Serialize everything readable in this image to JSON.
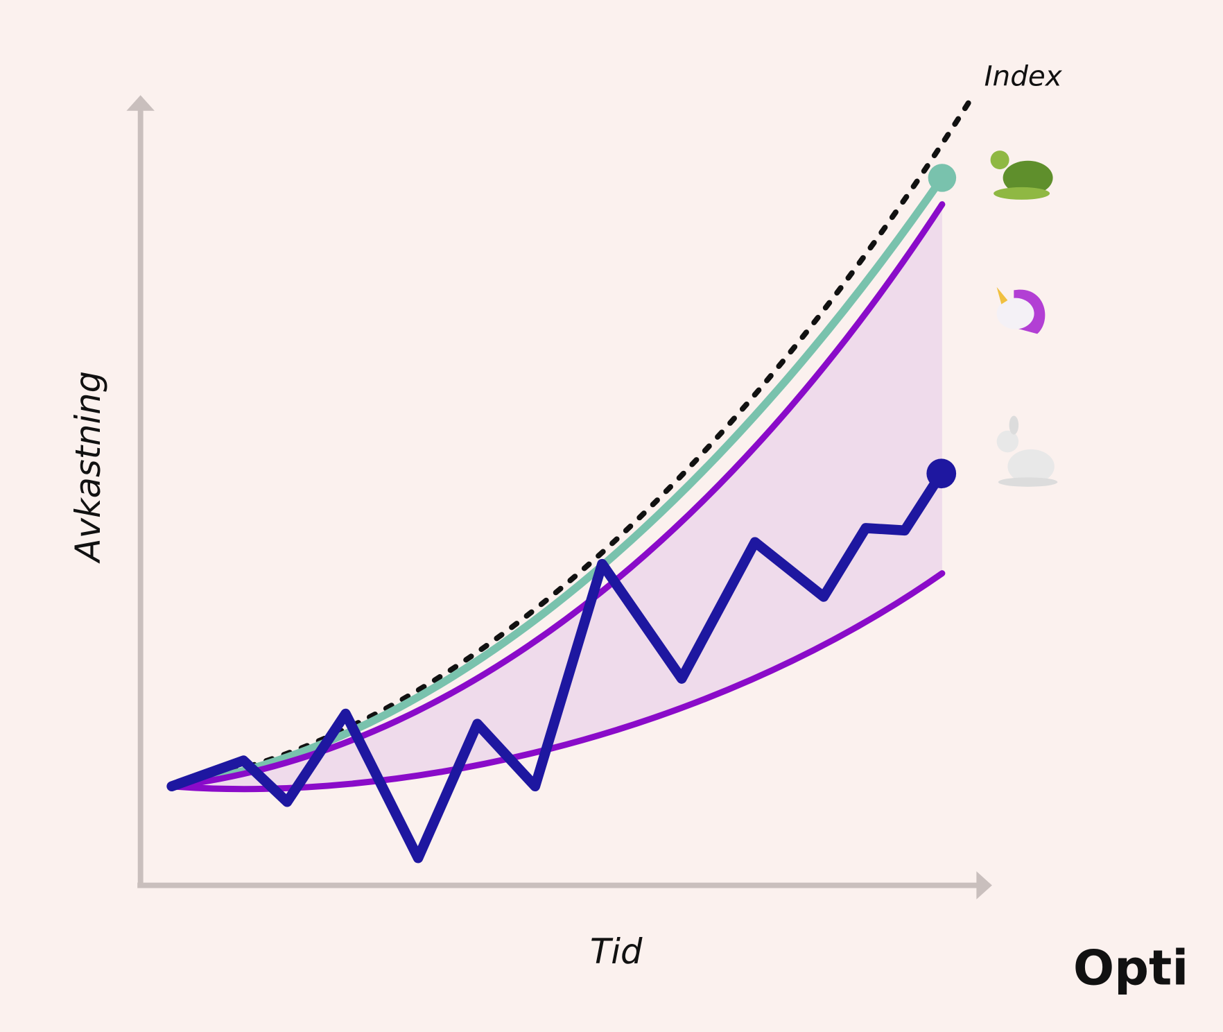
{
  "labels": {
    "index": "Index",
    "y_axis": "Avkastning",
    "x_axis": "Tid"
  },
  "logo": "Opti"
}
